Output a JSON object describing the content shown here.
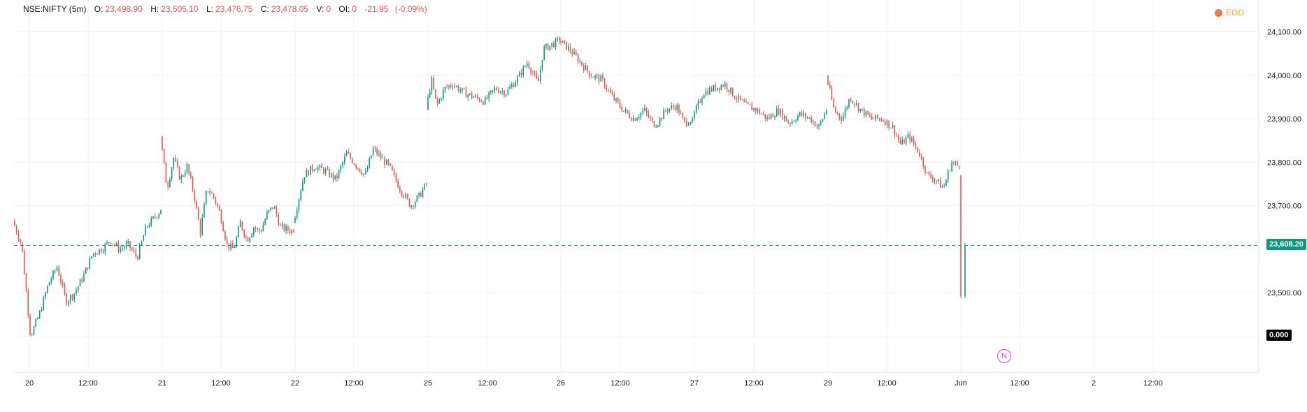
{
  "header": {
    "symbol": "NSE:NIFTY (5m)",
    "open_label": "O:",
    "open": "23,498.90",
    "high_label": "H:",
    "high": "23,505.10",
    "low_label": "L:",
    "low": "23,476.75",
    "close_label": "C:",
    "close": "23,478.05",
    "volume_label": "V:",
    "volume": "0",
    "oi_label": "OI:",
    "oi": "0",
    "change": "-21.95",
    "change_pct": "(-0.09%)",
    "eod_label": "EOD"
  },
  "current_price_label": "23,608.20",
  "zero_label": "0.000",
  "news_icon_label": "N",
  "colors": {
    "up": "#089981",
    "down": "#ef5350",
    "grid": "#f0f3fa",
    "accent": "#089981"
  },
  "chart_data": {
    "type": "candlestick",
    "title": "",
    "xlabel": "",
    "ylabel": "",
    "ylim": [
      23400,
      24130
    ],
    "y_ticks": [
      24100,
      24000,
      23900,
      23800,
      23700,
      23500
    ],
    "y_tick_labels": [
      "24,100.00",
      "24,000.00",
      "23,900.00",
      "23,800.00",
      "23,700.00",
      "23,500.00"
    ],
    "x_tick_labels": [
      "20",
      "12:00",
      "21",
      "12:00",
      "22",
      "12:00",
      "25",
      "12:00",
      "26",
      "12:00",
      "27",
      "12:00",
      "29",
      "12:00",
      "Jun",
      "12:00",
      "2",
      "12:00"
    ],
    "current_price": 23608.2,
    "grid": true,
    "sessions": [
      {
        "date": "20",
        "open": 23665,
        "close": 23690,
        "high": 23700,
        "low": 23400,
        "path": [
          [
            0,
            23665
          ],
          [
            0.06,
            23610
          ],
          [
            0.12,
            23400
          ],
          [
            0.18,
            23450
          ],
          [
            0.24,
            23520
          ],
          [
            0.3,
            23560
          ],
          [
            0.36,
            23480
          ],
          [
            0.42,
            23500
          ],
          [
            0.48,
            23540
          ],
          [
            0.54,
            23590
          ],
          [
            0.6,
            23600
          ],
          [
            0.66,
            23620
          ],
          [
            0.72,
            23600
          ],
          [
            0.78,
            23610
          ],
          [
            0.84,
            23580
          ],
          [
            0.9,
            23650
          ],
          [
            1,
            23690
          ]
        ]
      },
      {
        "date": "21",
        "open": 23860,
        "close": 23640,
        "high": 23860,
        "low": 23590,
        "path": [
          [
            0,
            23860
          ],
          [
            0.05,
            23740
          ],
          [
            0.1,
            23810
          ],
          [
            0.15,
            23760
          ],
          [
            0.2,
            23790
          ],
          [
            0.25,
            23730
          ],
          [
            0.3,
            23640
          ],
          [
            0.35,
            23740
          ],
          [
            0.4,
            23720
          ],
          [
            0.45,
            23680
          ],
          [
            0.5,
            23610
          ],
          [
            0.55,
            23600
          ],
          [
            0.6,
            23660
          ],
          [
            0.65,
            23620
          ],
          [
            0.7,
            23650
          ],
          [
            0.75,
            23640
          ],
          [
            0.8,
            23680
          ],
          [
            0.85,
            23700
          ],
          [
            0.9,
            23650
          ],
          [
            1,
            23640
          ]
        ]
      },
      {
        "date": "22",
        "open": 23660,
        "close": 23750,
        "high": 23840,
        "low": 23660,
        "path": [
          [
            0,
            23660
          ],
          [
            0.08,
            23770
          ],
          [
            0.16,
            23790
          ],
          [
            0.24,
            23780
          ],
          [
            0.32,
            23760
          ],
          [
            0.4,
            23820
          ],
          [
            0.48,
            23790
          ],
          [
            0.54,
            23770
          ],
          [
            0.6,
            23830
          ],
          [
            0.66,
            23810
          ],
          [
            0.72,
            23790
          ],
          [
            0.8,
            23740
          ],
          [
            0.88,
            23700
          ],
          [
            0.94,
            23720
          ],
          [
            1,
            23750
          ]
        ]
      },
      {
        "date": "25",
        "open": 23920,
        "close": 24080,
        "high": 24090,
        "low": 23920,
        "path": [
          [
            0,
            23920
          ],
          [
            0.04,
            23990
          ],
          [
            0.08,
            23930
          ],
          [
            0.14,
            23970
          ],
          [
            0.2,
            23980
          ],
          [
            0.28,
            23960
          ],
          [
            0.36,
            23950
          ],
          [
            0.44,
            23940
          ],
          [
            0.52,
            23970
          ],
          [
            0.6,
            23960
          ],
          [
            0.68,
            23990
          ],
          [
            0.76,
            24030
          ],
          [
            0.84,
            23980
          ],
          [
            0.88,
            24060
          ],
          [
            0.94,
            24070
          ],
          [
            1,
            24080
          ]
        ]
      },
      {
        "date": "26",
        "open": 24080,
        "close": 23900,
        "high": 24090,
        "low": 23880,
        "path": [
          [
            0,
            24080
          ],
          [
            0.08,
            24060
          ],
          [
            0.16,
            24030
          ],
          [
            0.24,
            24000
          ],
          [
            0.32,
            23990
          ],
          [
            0.4,
            23950
          ],
          [
            0.48,
            23920
          ],
          [
            0.56,
            23900
          ],
          [
            0.64,
            23920
          ],
          [
            0.72,
            23880
          ],
          [
            0.8,
            23920
          ],
          [
            0.88,
            23930
          ],
          [
            0.94,
            23890
          ],
          [
            1,
            23900
          ]
        ]
      },
      {
        "date": "27",
        "open": 23900,
        "close": 23920,
        "high": 23990,
        "low": 23860,
        "path": [
          [
            0,
            23900
          ],
          [
            0.08,
            23960
          ],
          [
            0.16,
            23970
          ],
          [
            0.24,
            23980
          ],
          [
            0.32,
            23950
          ],
          [
            0.4,
            23930
          ],
          [
            0.48,
            23920
          ],
          [
            0.56,
            23900
          ],
          [
            0.64,
            23920
          ],
          [
            0.72,
            23890
          ],
          [
            0.8,
            23910
          ],
          [
            0.88,
            23900
          ],
          [
            0.94,
            23880
          ],
          [
            1,
            23920
          ]
        ]
      },
      {
        "date": "29",
        "open": 24000,
        "close": 23790,
        "high": 24000,
        "low": 23730,
        "path": [
          [
            0,
            24000
          ],
          [
            0.06,
            23920
          ],
          [
            0.12,
            23900
          ],
          [
            0.18,
            23950
          ],
          [
            0.26,
            23920
          ],
          [
            0.34,
            23900
          ],
          [
            0.42,
            23900
          ],
          [
            0.5,
            23880
          ],
          [
            0.56,
            23840
          ],
          [
            0.62,
            23860
          ],
          [
            0.7,
            23820
          ],
          [
            0.76,
            23770
          ],
          [
            0.82,
            23760
          ],
          [
            0.88,
            23740
          ],
          [
            0.94,
            23800
          ],
          [
            1,
            23790
          ]
        ]
      },
      {
        "date": "Jun",
        "open": 23770,
        "close": 23608,
        "high": 23770,
        "low": 23480,
        "path": [
          [
            0,
            23770
          ],
          [
            0.2,
            23560
          ],
          [
            0.4,
            23510
          ],
          [
            0.6,
            23490
          ],
          [
            0.8,
            23500
          ],
          [
            1,
            23608
          ]
        ]
      }
    ]
  }
}
